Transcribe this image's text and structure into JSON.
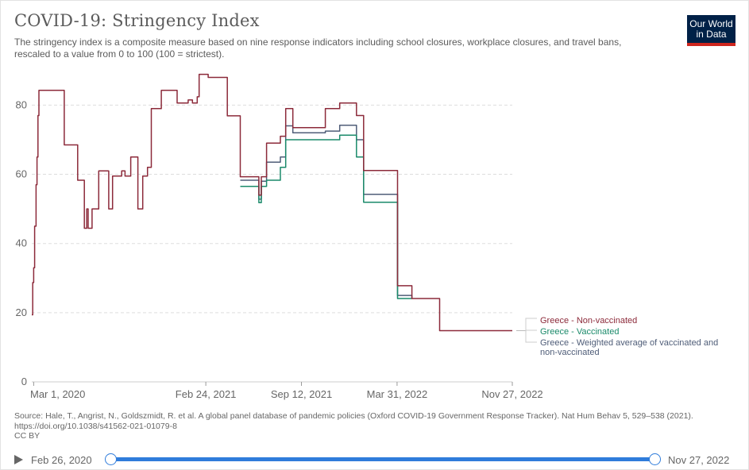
{
  "header": {
    "title": "COVID-19: Stringency Index",
    "subtitle": "The stringency index is a composite measure based on nine response indicators including school closures, workplace closures, and travel bans, rescaled to a value from 0 to 100 (100 = strictest).",
    "logo_line1": "Our World",
    "logo_line2": "in Data"
  },
  "footer": {
    "source": "Source: Hale, T., Angrist, N., Goldszmidt, R. et al. A global panel database of pandemic policies (Oxford COVID-19 Government Response Tracker). Nat Hum Behav 5, 529–538 (2021). https://doi.org/10.1038/s41562-021-01079-8",
    "license": "CC BY"
  },
  "timeline": {
    "start_label": "Feb 26, 2020",
    "end_label": "Nov 27, 2022",
    "range_start": 0,
    "range_end": 1
  },
  "colors": {
    "non_vaccinated": "#8c2a3a",
    "vaccinated": "#1a8a6a",
    "weighted": "#4f5d78",
    "grid": "#dddddd",
    "timeline_accent": "#2f7cdb"
  },
  "chart_data": {
    "type": "line",
    "title": "COVID-19: Stringency Index",
    "xlabel": "",
    "ylabel": "",
    "xlim": [
      "2020-02-26",
      "2022-11-27"
    ],
    "ylim": [
      0,
      80
    ],
    "y_ticks": [
      0,
      20,
      40,
      60,
      80
    ],
    "x_ticks": [
      {
        "label": "Mar 1, 2020",
        "date": "2020-03-01"
      },
      {
        "label": "Feb 24, 2021",
        "date": "2021-02-24"
      },
      {
        "label": "Sep 12, 2021",
        "date": "2021-09-12"
      },
      {
        "label": "Mar 31, 2022",
        "date": "2022-03-31"
      },
      {
        "label": "Nov 27, 2022",
        "date": "2022-11-27"
      }
    ],
    "grid": "horizontal dashed",
    "legend_placement": "right",
    "series": [
      {
        "name": "Greece - Non-vaccinated",
        "color_key": "non_vaccinated",
        "points": [
          [
            "2020-02-26",
            19.4
          ],
          [
            "2020-02-28",
            28.7
          ],
          [
            "2020-03-01",
            33.0
          ],
          [
            "2020-03-03",
            45.0
          ],
          [
            "2020-03-06",
            57.0
          ],
          [
            "2020-03-08",
            65.0
          ],
          [
            "2020-03-10",
            77.0
          ],
          [
            "2020-03-12",
            84.3
          ],
          [
            "2020-05-04",
            68.5
          ],
          [
            "2020-06-01",
            58.3
          ],
          [
            "2020-06-15",
            44.4
          ],
          [
            "2020-06-20",
            50.0
          ],
          [
            "2020-06-23",
            44.4
          ],
          [
            "2020-07-01",
            50.0
          ],
          [
            "2020-07-15",
            61.0
          ],
          [
            "2020-08-05",
            50.0
          ],
          [
            "2020-08-13",
            59.5
          ],
          [
            "2020-09-01",
            61.0
          ],
          [
            "2020-09-08",
            59.5
          ],
          [
            "2020-09-20",
            65.0
          ],
          [
            "2020-10-05",
            50.0
          ],
          [
            "2020-10-15",
            59.5
          ],
          [
            "2020-10-25",
            62.0
          ],
          [
            "2020-11-02",
            79.0
          ],
          [
            "2020-11-23",
            84.3
          ],
          [
            "2020-12-26",
            80.6
          ],
          [
            "2021-01-18",
            81.5
          ],
          [
            "2021-01-27",
            80.6
          ],
          [
            "2021-02-06",
            82.4
          ],
          [
            "2021-02-10",
            88.9
          ],
          [
            "2021-03-01",
            88.0
          ],
          [
            "2021-04-10",
            76.9
          ],
          [
            "2021-05-07",
            59.3
          ],
          [
            "2021-06-15",
            54.0
          ],
          [
            "2021-06-20",
            59.3
          ],
          [
            "2021-07-01",
            69.0
          ],
          [
            "2021-07-30",
            71.0
          ],
          [
            "2021-08-10",
            79.0
          ],
          [
            "2021-08-25",
            73.5
          ],
          [
            "2021-11-01",
            79.0
          ],
          [
            "2021-12-01",
            80.6
          ],
          [
            "2022-01-05",
            77.0
          ],
          [
            "2022-01-20",
            61.1
          ],
          [
            "2022-03-31",
            61.1
          ],
          [
            "2022-04-01",
            27.8
          ],
          [
            "2022-05-01",
            24.1
          ],
          [
            "2022-06-28",
            14.8
          ],
          [
            "2022-11-27",
            14.8
          ]
        ]
      },
      {
        "name": "Greece - Vaccinated",
        "color_key": "vaccinated",
        "points": [
          [
            "2021-05-07",
            56.5
          ],
          [
            "2021-06-15",
            51.8
          ],
          [
            "2021-06-20",
            56.5
          ],
          [
            "2021-07-01",
            58.3
          ],
          [
            "2021-07-30",
            62.0
          ],
          [
            "2021-08-10",
            70.0
          ],
          [
            "2021-12-01",
            71.3
          ],
          [
            "2022-01-05",
            65.0
          ],
          [
            "2022-01-20",
            51.9
          ],
          [
            "2022-03-31",
            51.9
          ],
          [
            "2022-04-01",
            24.1
          ],
          [
            "2022-05-01",
            24.1
          ]
        ]
      },
      {
        "name": "Greece - Weighted average of vaccinated and non-vaccinated",
        "color_key": "weighted",
        "points": [
          [
            "2021-05-07",
            58.3
          ],
          [
            "2021-06-15",
            52.8
          ],
          [
            "2021-06-20",
            58.0
          ],
          [
            "2021-07-01",
            63.5
          ],
          [
            "2021-07-30",
            65.0
          ],
          [
            "2021-08-10",
            74.0
          ],
          [
            "2021-08-25",
            72.0
          ],
          [
            "2021-11-01",
            72.5
          ],
          [
            "2021-12-01",
            74.2
          ],
          [
            "2022-01-05",
            70.0
          ],
          [
            "2022-01-20",
            54.2
          ],
          [
            "2022-03-31",
            54.2
          ],
          [
            "2022-04-01",
            25.0
          ],
          [
            "2022-05-01",
            24.1
          ]
        ]
      }
    ]
  }
}
